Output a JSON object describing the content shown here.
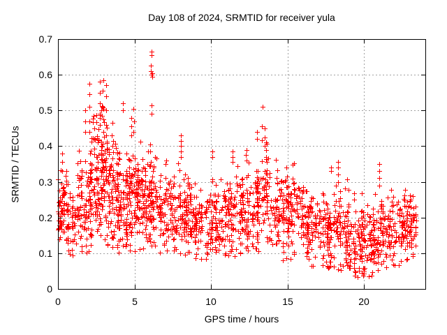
{
  "chart_data": {
    "type": "scatter",
    "title": "Day 108 of 2024, SRMTID for receiver yula",
    "xlabel": "GPS time / hours",
    "ylabel": "SRMTID / TECUs",
    "xlim": [
      0,
      24
    ],
    "ylim": [
      0,
      0.7
    ],
    "xticks": [
      0,
      5,
      10,
      15,
      20
    ],
    "xtick_labels": [
      "0",
      "5",
      "10",
      "15",
      "20"
    ],
    "yticks": [
      0,
      0.1,
      0.2,
      0.3,
      0.4,
      0.5,
      0.6,
      0.7
    ],
    "ytick_labels": [
      "0",
      "0.1",
      "0.2",
      "0.3",
      "0.4",
      "0.5",
      "0.6",
      "0.7"
    ],
    "legend": "none",
    "grid": {
      "show": true,
      "color": "#a0a0a0",
      "dash": "2,3"
    },
    "axis_color": "#000000",
    "background": "#ffffff",
    "marker": {
      "shape": "plus",
      "color": "#ff0000",
      "size": 7
    },
    "x_data_range": [
      0,
      23.4
    ],
    "y_data_range": [
      0.03,
      0.665
    ],
    "seed": 108,
    "spike_stacks": [
      {
        "x": 0.3,
        "y": [
          0.33,
          0.355,
          0.38
        ]
      },
      {
        "x": 1.8,
        "y": [
          0.44,
          0.47,
          0.5
        ]
      },
      {
        "x": 2.05,
        "y": [
          0.44,
          0.47,
          0.51,
          0.545,
          0.575
        ]
      },
      {
        "x": 2.35,
        "y": [
          0.42,
          0.45,
          0.485
        ]
      },
      {
        "x": 2.75,
        "y": [
          0.46,
          0.49,
          0.52,
          0.55,
          0.58
        ]
      },
      {
        "x": 2.95,
        "y": [
          0.44,
          0.475,
          0.51,
          0.555,
          0.585
        ]
      },
      {
        "x": 3.15,
        "y": [
          0.43,
          0.46,
          0.5,
          0.54,
          0.57
        ]
      },
      {
        "x": 3.55,
        "y": [
          0.4,
          0.43,
          0.465
        ]
      },
      {
        "x": 4.25,
        "y": [
          0.5,
          0.52
        ]
      },
      {
        "x": 4.8,
        "y": [
          0.43,
          0.455,
          0.48
        ]
      },
      {
        "x": 4.95,
        "y": [
          0.44,
          0.47,
          0.505
        ]
      },
      {
        "x": 6.1,
        "y": [
          0.49,
          0.515,
          0.6,
          0.61,
          0.625,
          0.655,
          0.665
        ]
      },
      {
        "x": 6.18,
        "y": [
          0.595,
          0.605
        ]
      },
      {
        "x": 7.05,
        "y": [
          0.35,
          0.36
        ]
      },
      {
        "x": 8.05,
        "y": [
          0.37,
          0.385,
          0.4,
          0.415,
          0.43
        ]
      },
      {
        "x": 10.1,
        "y": [
          0.37,
          0.385
        ]
      },
      {
        "x": 11.4,
        "y": [
          0.355,
          0.37,
          0.385
        ]
      },
      {
        "x": 12.3,
        "y": [
          0.36,
          0.375,
          0.39
        ]
      },
      {
        "x": 13.0,
        "y": [
          0.42,
          0.44
        ]
      },
      {
        "x": 13.35,
        "y": [
          0.455,
          0.51
        ]
      },
      {
        "x": 13.5,
        "y": [
          0.4,
          0.425,
          0.45
        ]
      },
      {
        "x": 13.6,
        "y": [
          0.37,
          0.39,
          0.41
        ]
      },
      {
        "x": 17.85,
        "y": [
          0.33,
          0.34
        ]
      },
      {
        "x": 18.3,
        "y": [
          0.3,
          0.32,
          0.34,
          0.355
        ]
      },
      {
        "x": 21.0,
        "y": [
          0.29,
          0.31,
          0.33,
          0.35
        ]
      }
    ],
    "density_segments": [
      {
        "x0": 0.0,
        "x1": 0.6,
        "n": 65,
        "yc": 0.23,
        "ysd": 0.055,
        "ymin": 0.085,
        "ymax": 0.38
      },
      {
        "x0": 0.6,
        "x1": 1.2,
        "n": 45,
        "yc": 0.19,
        "ysd": 0.05,
        "ymin": 0.09,
        "ymax": 0.34
      },
      {
        "x0": 1.2,
        "x1": 2.0,
        "n": 70,
        "yc": 0.24,
        "ysd": 0.065,
        "ymin": 0.1,
        "ymax": 0.5
      },
      {
        "x0": 2.0,
        "x1": 2.7,
        "n": 95,
        "yc": 0.3,
        "ysd": 0.085,
        "ymin": 0.12,
        "ymax": 0.56
      },
      {
        "x0": 2.7,
        "x1": 3.4,
        "n": 100,
        "yc": 0.3,
        "ysd": 0.09,
        "ymin": 0.12,
        "ymax": 0.56
      },
      {
        "x0": 3.4,
        "x1": 4.1,
        "n": 90,
        "yc": 0.26,
        "ysd": 0.075,
        "ymin": 0.1,
        "ymax": 0.48
      },
      {
        "x0": 4.1,
        "x1": 4.7,
        "n": 70,
        "yc": 0.24,
        "ysd": 0.07,
        "ymin": 0.1,
        "ymax": 0.44
      },
      {
        "x0": 4.7,
        "x1": 5.4,
        "n": 80,
        "yc": 0.26,
        "ysd": 0.075,
        "ymin": 0.1,
        "ymax": 0.47
      },
      {
        "x0": 5.4,
        "x1": 6.0,
        "n": 70,
        "yc": 0.24,
        "ysd": 0.065,
        "ymin": 0.11,
        "ymax": 0.42
      },
      {
        "x0": 6.0,
        "x1": 6.6,
        "n": 60,
        "yc": 0.25,
        "ysd": 0.065,
        "ymin": 0.12,
        "ymax": 0.42
      },
      {
        "x0": 6.6,
        "x1": 7.6,
        "n": 85,
        "yc": 0.22,
        "ysd": 0.06,
        "ymin": 0.1,
        "ymax": 0.37
      },
      {
        "x0": 7.6,
        "x1": 8.6,
        "n": 85,
        "yc": 0.21,
        "ysd": 0.055,
        "ymin": 0.09,
        "ymax": 0.36
      },
      {
        "x0": 8.6,
        "x1": 9.6,
        "n": 80,
        "yc": 0.19,
        "ysd": 0.05,
        "ymin": 0.07,
        "ymax": 0.33
      },
      {
        "x0": 9.6,
        "x1": 10.6,
        "n": 80,
        "yc": 0.19,
        "ysd": 0.055,
        "ymin": 0.07,
        "ymax": 0.33
      },
      {
        "x0": 10.6,
        "x1": 11.6,
        "n": 85,
        "yc": 0.2,
        "ysd": 0.055,
        "ymin": 0.09,
        "ymax": 0.36
      },
      {
        "x0": 11.6,
        "x1": 12.6,
        "n": 85,
        "yc": 0.21,
        "ysd": 0.06,
        "ymin": 0.1,
        "ymax": 0.38
      },
      {
        "x0": 12.6,
        "x1": 13.2,
        "n": 60,
        "yc": 0.21,
        "ysd": 0.06,
        "ymin": 0.1,
        "ymax": 0.38
      },
      {
        "x0": 13.2,
        "x1": 13.9,
        "n": 55,
        "yc": 0.26,
        "ysd": 0.07,
        "ymin": 0.12,
        "ymax": 0.46
      },
      {
        "x0": 13.9,
        "x1": 15.0,
        "n": 85,
        "yc": 0.21,
        "ysd": 0.06,
        "ymin": 0.08,
        "ymax": 0.37
      },
      {
        "x0": 15.0,
        "x1": 16.0,
        "n": 85,
        "yc": 0.22,
        "ysd": 0.06,
        "ymin": 0.08,
        "ymax": 0.36
      },
      {
        "x0": 16.0,
        "x1": 17.0,
        "n": 85,
        "yc": 0.17,
        "ysd": 0.05,
        "ymin": 0.06,
        "ymax": 0.31
      },
      {
        "x0": 17.0,
        "x1": 18.0,
        "n": 85,
        "yc": 0.16,
        "ysd": 0.05,
        "ymin": 0.05,
        "ymax": 0.3
      },
      {
        "x0": 18.0,
        "x1": 19.0,
        "n": 85,
        "yc": 0.165,
        "ysd": 0.055,
        "ymin": 0.05,
        "ymax": 0.36
      },
      {
        "x0": 19.0,
        "x1": 20.0,
        "n": 85,
        "yc": 0.14,
        "ysd": 0.05,
        "ymin": 0.03,
        "ymax": 0.3
      },
      {
        "x0": 20.0,
        "x1": 21.0,
        "n": 85,
        "yc": 0.14,
        "ysd": 0.05,
        "ymin": 0.03,
        "ymax": 0.32
      },
      {
        "x0": 21.0,
        "x1": 22.0,
        "n": 80,
        "yc": 0.16,
        "ysd": 0.05,
        "ymin": 0.05,
        "ymax": 0.34
      },
      {
        "x0": 22.0,
        "x1": 23.0,
        "n": 75,
        "yc": 0.17,
        "ysd": 0.05,
        "ymin": 0.06,
        "ymax": 0.3
      },
      {
        "x0": 23.0,
        "x1": 23.4,
        "n": 40,
        "yc": 0.18,
        "ysd": 0.045,
        "ymin": 0.08,
        "ymax": 0.28
      }
    ]
  }
}
